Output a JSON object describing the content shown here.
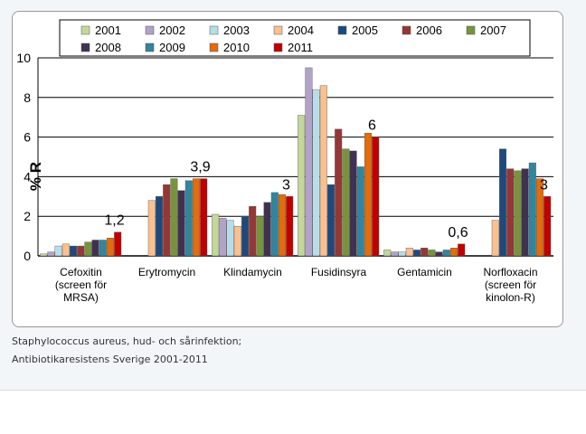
{
  "caption": {
    "line1": "Staphylococcus aureus, hud- och sårinfektion;",
    "line2": "Antibiotikaresistens Sverige 2001-2011"
  },
  "chart_data": {
    "type": "bar",
    "ylabel": "% R",
    "ylim": [
      0,
      10
    ],
    "yticks": [
      0,
      2,
      4,
      6,
      8,
      10
    ],
    "grid": true,
    "legend_position": "top",
    "categories": [
      [
        "Cefoxitin",
        "(screen för",
        "MRSA)"
      ],
      [
        "Erytromycin"
      ],
      [
        "Klindamycin"
      ],
      [
        "Fusidinsyra"
      ],
      [
        "Gentamicin"
      ],
      [
        "Norfloxacin",
        "(screen för",
        "kinolon-R)"
      ]
    ],
    "series": [
      {
        "name": "2001",
        "color": "#c4d79b",
        "values": [
          0.1,
          0,
          2.1,
          7.1,
          0.3,
          0
        ]
      },
      {
        "name": "2002",
        "color": "#b3a2c7",
        "values": [
          0.2,
          0,
          1.9,
          9.5,
          0.2,
          0
        ]
      },
      {
        "name": "2003",
        "color": "#b7dee8",
        "values": [
          0.5,
          0,
          1.8,
          8.4,
          0.2,
          0
        ]
      },
      {
        "name": "2004",
        "color": "#fac090",
        "values": [
          0.6,
          2.8,
          1.5,
          8.6,
          0.4,
          1.8
        ]
      },
      {
        "name": "2005",
        "color": "#1f497d",
        "values": [
          0.5,
          3.0,
          2.0,
          3.6,
          0.3,
          5.4
        ]
      },
      {
        "name": "2006",
        "color": "#953735",
        "values": [
          0.5,
          3.6,
          2.5,
          6.4,
          0.4,
          4.4
        ]
      },
      {
        "name": "2007",
        "color": "#77933c",
        "values": [
          0.7,
          3.9,
          2.0,
          5.4,
          0.3,
          4.3
        ]
      },
      {
        "name": "2008",
        "color": "#403151",
        "values": [
          0.8,
          3.3,
          2.7,
          5.3,
          0.2,
          4.4
        ]
      },
      {
        "name": "2009",
        "color": "#31859c",
        "values": [
          0.8,
          3.8,
          3.2,
          4.5,
          0.3,
          4.7
        ]
      },
      {
        "name": "2010",
        "color": "#e46c0a",
        "values": [
          0.9,
          3.9,
          3.1,
          6.2,
          0.4,
          3.9
        ]
      },
      {
        "name": "2011",
        "color": "#c00000",
        "values": [
          1.2,
          3.9,
          3.0,
          6.0,
          0.6,
          3.0
        ]
      }
    ],
    "annotations": [
      "1,2",
      "3,9",
      "3",
      "6",
      "0,6",
      "3"
    ]
  }
}
